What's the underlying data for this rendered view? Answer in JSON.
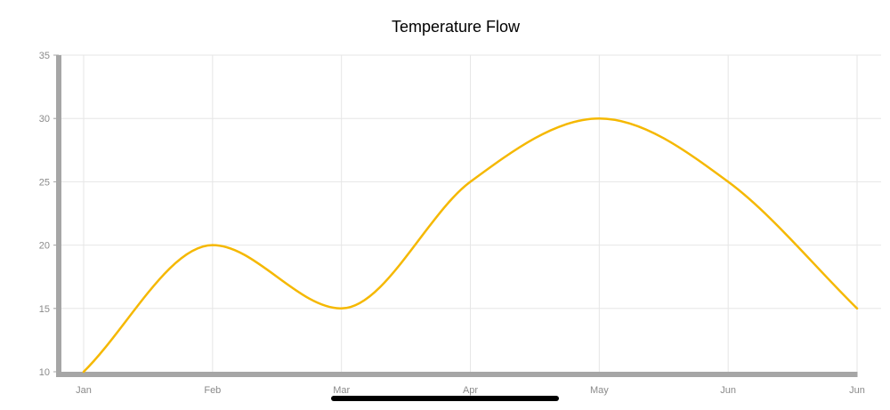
{
  "chart_data": {
    "type": "line",
    "title": "Temperature Flow",
    "xlabel": "",
    "ylabel": "",
    "categories": [
      "Jan",
      "Feb",
      "Mar",
      "Apr",
      "May",
      "Jun",
      "Jun"
    ],
    "series": [
      {
        "values": [
          10,
          20,
          15,
          25,
          30,
          25,
          15
        ]
      }
    ],
    "ylim": [
      10,
      35
    ],
    "yticks": [
      "10",
      "15",
      "20",
      "25",
      "30",
      "35"
    ],
    "grid": true,
    "curve": "smooth",
    "line_color": "#f5b800",
    "axis_color": "#a6a6a6",
    "grid_color": "#e6e6e6"
  }
}
